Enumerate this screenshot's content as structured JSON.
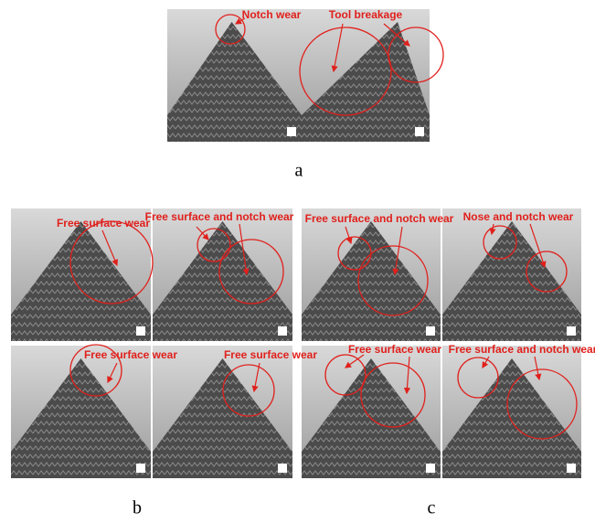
{
  "panels": [
    {
      "label": "a",
      "annotations": [
        "Notch wear",
        "Tool breakage"
      ]
    },
    {
      "label": "b",
      "annotations": [
        "Free surface wear",
        "Free surface and notch wear",
        "Free surface wear",
        "Free surface wear"
      ]
    },
    {
      "label": "c",
      "annotations": [
        "Free surface and notch wear",
        "Nose and notch wear",
        "Free surface wear",
        "Free surface and notch wear"
      ]
    }
  ]
}
